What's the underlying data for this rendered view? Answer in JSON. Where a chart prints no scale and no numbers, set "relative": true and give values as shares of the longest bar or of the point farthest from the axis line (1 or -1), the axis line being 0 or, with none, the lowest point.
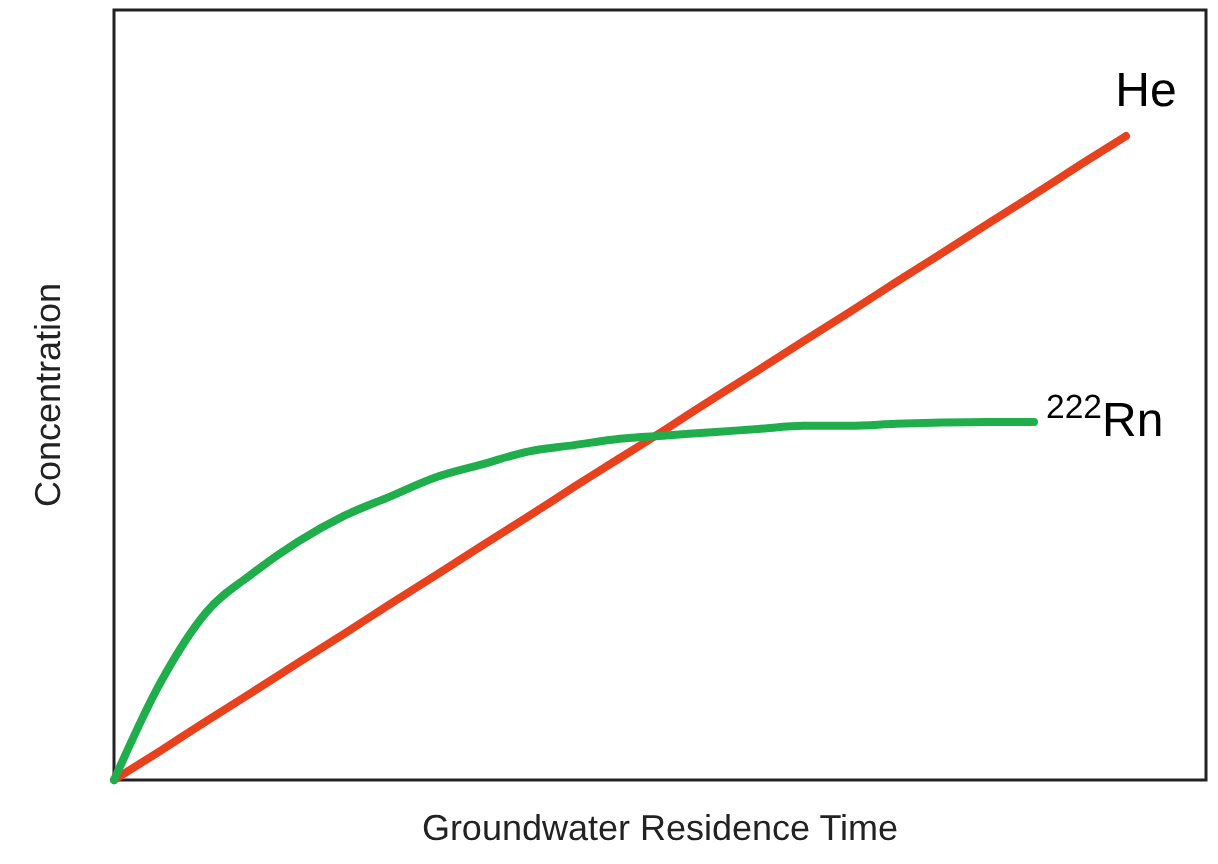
{
  "chart_data": {
    "type": "line",
    "relative": true,
    "xlabel": "Groundwater Residence Time",
    "ylabel": "Concentration",
    "marker": "none",
    "line_style": "solid",
    "categories": [
      null,
      null,
      null,
      null,
      null,
      null,
      null,
      null,
      null,
      null,
      null,
      null,
      null,
      null,
      null,
      null,
      null,
      null,
      null,
      null,
      null,
      null,
      null
    ],
    "series": [
      {
        "name": "He",
        "color": "#e8411e",
        "values": [
          0,
          0.045,
          0.091,
          0.136,
          0.182,
          0.227,
          0.273,
          0.318,
          0.364,
          0.409,
          0.455,
          0.5,
          0.545,
          0.591,
          0.636,
          0.682,
          0.727,
          0.773,
          0.818,
          0.864,
          0.909,
          0.955,
          1
        ]
      },
      {
        "name": "$^{222}$Rn",
        "color": "#1fae4b",
        "values": [
          0,
          0.15,
          0.26,
          0.32,
          0.37,
          0.41,
          0.44,
          0.47,
          0.49,
          0.51,
          0.52,
          0.53,
          0.535,
          0.54,
          0.545,
          0.55,
          0.55,
          0.553,
          0.555,
          0.556,
          0.556,
          null,
          null
        ]
      }
    ]
  }
}
